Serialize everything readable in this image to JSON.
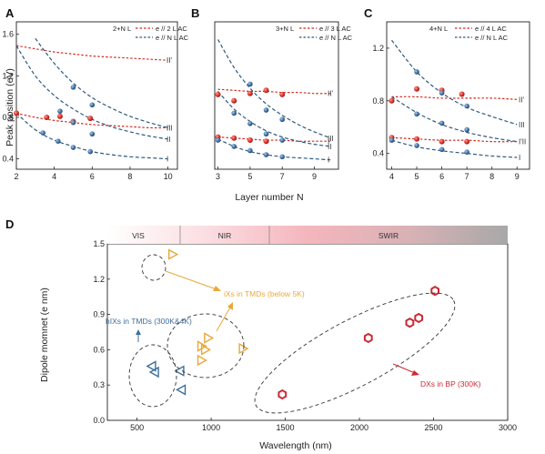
{
  "chart_data": [
    {
      "type": "scatter",
      "panel_label": "A",
      "legend_title": "2+N L",
      "legend": [
        "e // 2 L AC",
        "e // N L AC"
      ],
      "ylabel": "Peak position (eV)",
      "xlim": [
        2,
        10.5
      ],
      "ylim": [
        0.3,
        1.72
      ],
      "xticks": [
        "2",
        "4",
        "6",
        "8",
        "10"
      ],
      "yticks": [
        "0.4",
        "0.8",
        "1.2",
        "1.6"
      ],
      "x": [
        2,
        3,
        4,
        5,
        6,
        7,
        8,
        9,
        10
      ],
      "curve_labels": [
        "II'",
        "I'",
        "III",
        "II",
        "I"
      ],
      "red_fits": [
        {
          "label": "II'",
          "y": [
            1.49,
            1.46,
            1.43,
            1.41,
            1.39,
            1.38,
            1.37,
            1.36,
            1.35
          ]
        },
        {
          "label": "I'",
          "y": [
            0.84,
            0.8,
            0.77,
            0.75,
            0.73,
            0.72,
            0.71,
            0.7,
            0.7
          ]
        }
      ],
      "blue_fits": [
        {
          "label": "III",
          "x": [
            3,
            4,
            5,
            6,
            7,
            8,
            9,
            10
          ],
          "y": [
            1.56,
            1.32,
            1.13,
            0.99,
            0.89,
            0.81,
            0.75,
            0.7
          ]
        },
        {
          "label": "II",
          "x": [
            2,
            3,
            4,
            5,
            6,
            7,
            8,
            9,
            10
          ],
          "y": [
            1.49,
            1.2,
            1.01,
            0.88,
            0.78,
            0.71,
            0.66,
            0.62,
            0.59
          ]
        },
        {
          "label": "I",
          "x": [
            2,
            3,
            4,
            5,
            6,
            7,
            8,
            9,
            10
          ],
          "y": [
            0.84,
            0.68,
            0.58,
            0.52,
            0.47,
            0.44,
            0.42,
            0.41,
            0.4
          ]
        }
      ],
      "red_points": [
        {
          "x": 2,
          "y": 0.84
        },
        {
          "x": 3.6,
          "y": 0.8
        },
        {
          "x": 4.3,
          "y": 0.81
        },
        {
          "x": 5,
          "y": 0.76
        },
        {
          "x": 5.9,
          "y": 0.79
        }
      ],
      "blue_points": [
        {
          "x": 3.4,
          "y": 0.65
        },
        {
          "x": 4.2,
          "y": 0.57
        },
        {
          "x": 5,
          "y": 0.51
        },
        {
          "x": 5.9,
          "y": 0.47
        },
        {
          "x": 4.3,
          "y": 0.86
        },
        {
          "x": 5,
          "y": 0.75
        },
        {
          "x": 6,
          "y": 0.64
        },
        {
          "x": 5,
          "y": 1.09
        },
        {
          "x": 6,
          "y": 0.92
        }
      ]
    },
    {
      "type": "scatter",
      "panel_label": "B",
      "legend_title": "3+N L",
      "legend": [
        "e // 3 L AC",
        "e // N L AC"
      ],
      "xlabel": "Layer number N",
      "xlim": [
        2.8,
        10.5
      ],
      "ylim": [
        0.3,
        1.72
      ],
      "xticks": [
        "3",
        "5",
        "7",
        "9"
      ],
      "yticks": [],
      "x": [
        3,
        4,
        5,
        6,
        7,
        8,
        9,
        10
      ],
      "curve_labels": [
        "II'",
        "III",
        "I'",
        "II",
        "I"
      ],
      "red_fits": [
        {
          "label": "II'",
          "y": [
            1.07,
            1.06,
            1.05,
            1.05,
            1.04,
            1.04,
            1.03,
            1.03
          ]
        },
        {
          "label": "I'",
          "y": [
            0.61,
            0.6,
            0.59,
            0.58,
            0.58,
            0.57,
            0.57,
            0.57
          ]
        }
      ],
      "blue_fits": [
        {
          "label": "III",
          "x": [
            3,
            4,
            5,
            6,
            7,
            8,
            9,
            10
          ],
          "y": [
            1.55,
            1.28,
            1.08,
            0.93,
            0.82,
            0.73,
            0.66,
            0.6
          ]
        },
        {
          "label": "II",
          "x": [
            3,
            4,
            5,
            6,
            7,
            8,
            9,
            10
          ],
          "y": [
            1.05,
            0.88,
            0.76,
            0.67,
            0.61,
            0.57,
            0.54,
            0.52
          ]
        },
        {
          "label": "I",
          "x": [
            3,
            4,
            5,
            6,
            7,
            8,
            9,
            10
          ],
          "y": [
            0.59,
            0.52,
            0.47,
            0.44,
            0.42,
            0.41,
            0.4,
            0.39
          ]
        }
      ],
      "red_points": [
        {
          "x": 3,
          "y": 1.02
        },
        {
          "x": 3,
          "y": 0.61
        },
        {
          "x": 4,
          "y": 0.96
        },
        {
          "x": 4,
          "y": 0.6
        },
        {
          "x": 5,
          "y": 0.58
        },
        {
          "x": 5,
          "y": 1.03
        },
        {
          "x": 6,
          "y": 1.06
        },
        {
          "x": 6,
          "y": 0.57
        },
        {
          "x": 7,
          "y": 1.02
        }
      ],
      "blue_points": [
        {
          "x": 3,
          "y": 0.58
        },
        {
          "x": 4,
          "y": 0.52
        },
        {
          "x": 5,
          "y": 0.48
        },
        {
          "x": 6,
          "y": 0.44
        },
        {
          "x": 7,
          "y": 0.42
        },
        {
          "x": 4,
          "y": 0.84
        },
        {
          "x": 5,
          "y": 0.74
        },
        {
          "x": 6,
          "y": 0.64
        },
        {
          "x": 7,
          "y": 0.58
        },
        {
          "x": 5,
          "y": 1.12
        },
        {
          "x": 6,
          "y": 0.87
        },
        {
          "x": 7,
          "y": 0.78
        }
      ]
    },
    {
      "type": "scatter",
      "panel_label": "C",
      "legend_title": "4+N L",
      "legend": [
        "e // 4 L AC",
        "e // N L AC"
      ],
      "xlim": [
        3.8,
        9.5
      ],
      "ylim": [
        0.28,
        1.4
      ],
      "xticks": [
        "4",
        "5",
        "6",
        "7",
        "8",
        "9"
      ],
      "yticks": [
        "0.4",
        "0.8",
        "1.2"
      ],
      "x": [
        4,
        5,
        6,
        7,
        8,
        9
      ],
      "curve_labels": [
        "II'",
        "III",
        "I'II",
        "I"
      ],
      "red_fits": [
        {
          "label": "II'",
          "y": [
            0.83,
            0.83,
            0.82,
            0.82,
            0.82,
            0.81
          ]
        },
        {
          "label": "I'",
          "y": [
            0.52,
            0.51,
            0.5,
            0.5,
            0.49,
            0.49
          ]
        }
      ],
      "blue_fits": [
        {
          "label": "III",
          "x": [
            4,
            5,
            6,
            7,
            8,
            9
          ],
          "y": [
            1.26,
            1.02,
            0.86,
            0.75,
            0.68,
            0.62
          ]
        },
        {
          "label": "II",
          "x": [
            4,
            5,
            6,
            7,
            8,
            9
          ],
          "y": [
            0.83,
            0.71,
            0.62,
            0.56,
            0.52,
            0.49
          ]
        },
        {
          "label": "I",
          "x": [
            4,
            5,
            6,
            7,
            8,
            9
          ],
          "y": [
            0.5,
            0.45,
            0.42,
            0.4,
            0.38,
            0.37
          ]
        }
      ],
      "red_points": [
        {
          "x": 4,
          "y": 0.8
        },
        {
          "x": 4,
          "y": 0.52
        },
        {
          "x": 5,
          "y": 0.89
        },
        {
          "x": 5,
          "y": 0.51
        },
        {
          "x": 6,
          "y": 0.88
        },
        {
          "x": 6,
          "y": 0.49
        },
        {
          "x": 6.8,
          "y": 0.85
        },
        {
          "x": 7,
          "y": 0.49
        }
      ],
      "blue_points": [
        {
          "x": 4,
          "y": 0.5
        },
        {
          "x": 5,
          "y": 0.46
        },
        {
          "x": 6,
          "y": 0.43
        },
        {
          "x": 7,
          "y": 0.41
        },
        {
          "x": 5,
          "y": 0.7
        },
        {
          "x": 6,
          "y": 0.63
        },
        {
          "x": 7,
          "y": 0.58
        },
        {
          "x": 5,
          "y": 1.02
        },
        {
          "x": 6,
          "y": 0.86
        },
        {
          "x": 7,
          "y": 0.76
        }
      ]
    },
    {
      "type": "scatter",
      "panel_label": "D",
      "xlabel": "Wavelength (nm)",
      "ylabel": "Dipole momnet (e nm)",
      "xlim": [
        300,
        3000
      ],
      "ylim": [
        0,
        1.5
      ],
      "xticks": [
        "500",
        "1000",
        "1500",
        "2000",
        "2500",
        "3000"
      ],
      "yticks": [
        "0.0",
        "0.3",
        "0.6",
        "0.9",
        "1.2",
        "1.5"
      ],
      "bands": [
        {
          "name": "VIS",
          "from": 300,
          "to": 880
        },
        {
          "name": "NIR",
          "from": 880,
          "to": 1450
        },
        {
          "name": "SWIR",
          "from": 1450,
          "to": 3000
        }
      ],
      "groups": [
        {
          "name": "hIXs in TMDs (300K&4K)",
          "marker": "triangle-left-open",
          "color": "#3d6f9c",
          "points": [
            {
              "x": 600,
              "y": 0.46
            },
            {
              "x": 620,
              "y": 0.41
            },
            {
              "x": 790,
              "y": 0.42
            },
            {
              "x": 800,
              "y": 0.26
            }
          ]
        },
        {
          "name": "iXs in TMDs (below 5K)",
          "marker": "triangle-right-open",
          "color": "#e8a93a",
          "points": [
            {
              "x": 740,
              "y": 1.41
            },
            {
              "x": 935,
              "y": 0.63
            },
            {
              "x": 960,
              "y": 0.6
            },
            {
              "x": 980,
              "y": 0.7
            },
            {
              "x": 935,
              "y": 0.51
            },
            {
              "x": 1215,
              "y": 0.61
            }
          ]
        },
        {
          "name": "DXs in BP (300K)",
          "marker": "hexagon",
          "color": "#cc2a36",
          "points": [
            {
              "x": 1480,
              "y": 0.22
            },
            {
              "x": 2060,
              "y": 0.7
            },
            {
              "x": 2340,
              "y": 0.83
            },
            {
              "x": 2400,
              "y": 0.87
            },
            {
              "x": 2510,
              "y": 1.1
            }
          ]
        }
      ]
    }
  ]
}
